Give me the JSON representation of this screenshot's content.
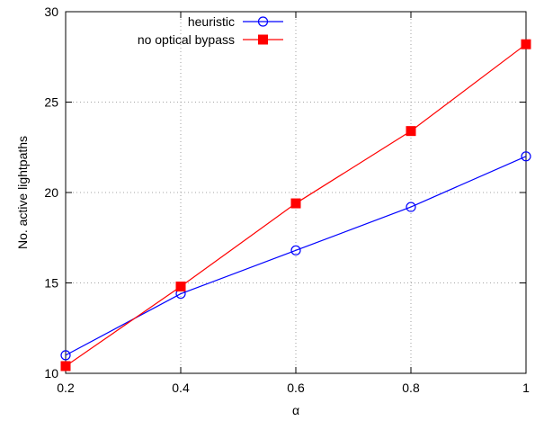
{
  "chart_data": {
    "type": "line",
    "title": "",
    "xlabel": "α",
    "ylabel": "No. active lightpaths",
    "x": [
      0.2,
      0.4,
      0.6,
      0.8,
      1.0
    ],
    "xticks": [
      "0.2",
      "0.4",
      "0.6",
      "0.8",
      "1"
    ],
    "yticks": [
      "10",
      "15",
      "20",
      "25",
      "30"
    ],
    "xlim": [
      0.2,
      1.0
    ],
    "ylim": [
      10,
      30
    ],
    "grid": true,
    "legend_position": "top-right",
    "series": [
      {
        "name": "heuristic",
        "values": [
          11.0,
          14.4,
          16.8,
          19.2,
          22.0
        ],
        "color": "#0000ff",
        "marker": "open-circle"
      },
      {
        "name": "no optical bypass",
        "values": [
          10.4,
          14.8,
          19.4,
          23.4,
          28.2
        ],
        "color": "#ff0000",
        "marker": "filled-square"
      }
    ]
  }
}
